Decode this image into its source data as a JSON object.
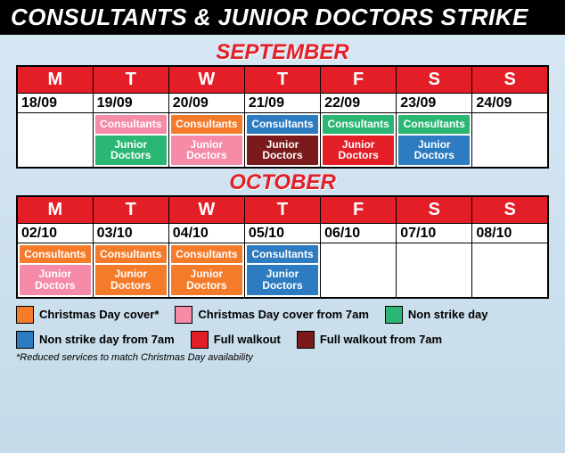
{
  "title": "CONSULTANTS & JUNIOR DOCTORS STRIKE",
  "colors": {
    "orange": "#f47b2a",
    "pink": "#f68ba7",
    "green": "#2bb673",
    "blue": "#2d7bc0",
    "red": "#e41e26",
    "darkred": "#7a1a1a"
  },
  "day_headers": [
    "M",
    "T",
    "W",
    "T",
    "F",
    "S",
    "S"
  ],
  "months": [
    {
      "name": "SEPTEMBER",
      "days": [
        {
          "date": "18/09",
          "slots": []
        },
        {
          "date": "19/09",
          "slots": [
            {
              "label": "Consultants",
              "color": "pink"
            },
            {
              "label": "Junior Doctors",
              "color": "green"
            }
          ]
        },
        {
          "date": "20/09",
          "slots": [
            {
              "label": "Consultants",
              "color": "orange"
            },
            {
              "label": "Junior Doctors",
              "color": "pink"
            }
          ]
        },
        {
          "date": "21/09",
          "slots": [
            {
              "label": "Consultants",
              "color": "blue"
            },
            {
              "label": "Junior Doctors",
              "color": "darkred"
            }
          ]
        },
        {
          "date": "22/09",
          "slots": [
            {
              "label": "Consultants",
              "color": "green"
            },
            {
              "label": "Junior Doctors",
              "color": "red"
            }
          ]
        },
        {
          "date": "23/09",
          "slots": [
            {
              "label": "Consultants",
              "color": "green"
            },
            {
              "label": "Junior Doctors",
              "color": "blue"
            }
          ]
        },
        {
          "date": "24/09",
          "slots": []
        }
      ]
    },
    {
      "name": "OCTOBER",
      "days": [
        {
          "date": "02/10",
          "slots": [
            {
              "label": "Consultants",
              "color": "orange"
            },
            {
              "label": "Junior Doctors",
              "color": "pink"
            }
          ]
        },
        {
          "date": "03/10",
          "slots": [
            {
              "label": "Consultants",
              "color": "orange"
            },
            {
              "label": "Junior Doctors",
              "color": "orange"
            }
          ]
        },
        {
          "date": "04/10",
          "slots": [
            {
              "label": "Consultants",
              "color": "orange"
            },
            {
              "label": "Junior Doctors",
              "color": "orange"
            }
          ]
        },
        {
          "date": "05/10",
          "slots": [
            {
              "label": "Consultants",
              "color": "blue"
            },
            {
              "label": "Junior Doctors",
              "color": "blue"
            }
          ]
        },
        {
          "date": "06/10",
          "slots": []
        },
        {
          "date": "07/10",
          "slots": []
        },
        {
          "date": "08/10",
          "slots": []
        }
      ]
    }
  ],
  "legend": [
    {
      "color": "orange",
      "label": "Christmas Day cover*"
    },
    {
      "color": "pink",
      "label": "Christmas Day cover from 7am"
    },
    {
      "color": "green",
      "label": "Non strike day"
    },
    {
      "color": "blue",
      "label": "Non strike day from 7am"
    },
    {
      "color": "red",
      "label": "Full walkout"
    },
    {
      "color": "darkred",
      "label": "Full walkout from 7am"
    }
  ],
  "footnote": "*Reduced services to match Christmas Day availability"
}
